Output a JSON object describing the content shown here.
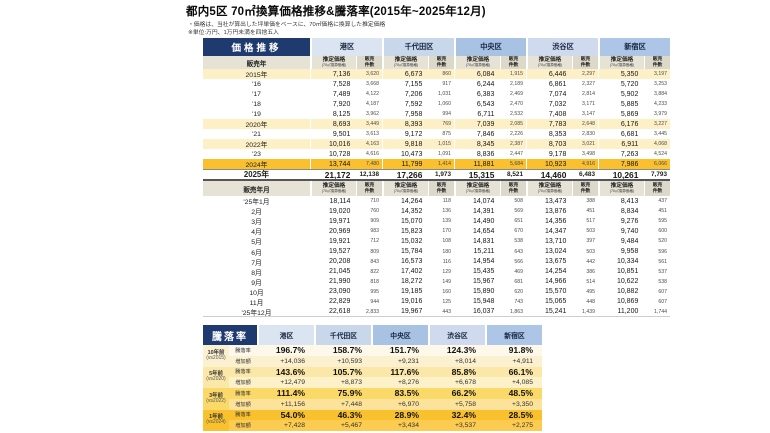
{
  "title": "都内5区 70㎡換算価格推移&騰落率(2015年~2025年12月)",
  "notes": {
    "note1": "・価格は、当社が算出した坪単価をベースに、70㎡価格に換算した推定価格",
    "note2": "※単位:万円、1万円未満を四捨五入"
  },
  "colors": {
    "header_navy": "#1e3a6e",
    "subheader_beige": "#e6e2d5",
    "highlight_yellow": "#fdf0c6",
    "highlight_gold": "#fbc02d"
  },
  "wards": [
    {
      "name": "港区",
      "color": "#dbe5f1"
    },
    {
      "name": "千代田区",
      "color": "#c9d7eb"
    },
    {
      "name": "中央区",
      "color": "#a8c2e4"
    },
    {
      "name": "渋谷区",
      "color": "#cfdaee"
    },
    {
      "name": "新宿区",
      "color": "#adc5e6"
    }
  ],
  "price_section": {
    "header": "価格推移",
    "year_label_header": "販売年",
    "month_label_header": "販売年月",
    "price_header": "推定価格",
    "price_sub": "(70㎡換算価格)",
    "count_header_1": "販売",
    "count_header_2": "件数",
    "yearly_rows": [
      {
        "label": "2015年",
        "cls": "y",
        "v": [
          [
            "7,136",
            "3,620"
          ],
          [
            "6,673",
            "860"
          ],
          [
            "6,084",
            "1,915"
          ],
          [
            "6,446",
            "2,297"
          ],
          [
            "5,350",
            "3,197"
          ]
        ]
      },
      {
        "label": "'16",
        "cls": "",
        "v": [
          [
            "7,528",
            "3,668"
          ],
          [
            "7,155",
            "917"
          ],
          [
            "6,244",
            "2,189"
          ],
          [
            "6,861",
            "2,327"
          ],
          [
            "5,720",
            "3,253"
          ]
        ]
      },
      {
        "label": "'17",
        "cls": "",
        "v": [
          [
            "7,489",
            "4,122"
          ],
          [
            "7,206",
            "1,031"
          ],
          [
            "6,383",
            "2,469"
          ],
          [
            "7,074",
            "2,814"
          ],
          [
            "5,902",
            "3,884"
          ]
        ]
      },
      {
        "label": "'18",
        "cls": "",
        "v": [
          [
            "7,920",
            "4,187"
          ],
          [
            "7,592",
            "1,060"
          ],
          [
            "6,543",
            "2,470"
          ],
          [
            "7,032",
            "3,171"
          ],
          [
            "5,885",
            "4,233"
          ]
        ]
      },
      {
        "label": "'19",
        "cls": "",
        "v": [
          [
            "8,125",
            "3,962"
          ],
          [
            "7,958",
            "994"
          ],
          [
            "6,711",
            "2,532"
          ],
          [
            "7,408",
            "3,147"
          ],
          [
            "5,869",
            "3,979"
          ]
        ]
      },
      {
        "label": "2020年",
        "cls": "y",
        "v": [
          [
            "8,693",
            "3,449"
          ],
          [
            "8,393",
            "769"
          ],
          [
            "7,039",
            "2,085"
          ],
          [
            "7,783",
            "2,648"
          ],
          [
            "6,176",
            "3,227"
          ]
        ]
      },
      {
        "label": "'21",
        "cls": "",
        "v": [
          [
            "9,501",
            "3,613"
          ],
          [
            "9,172",
            "875"
          ],
          [
            "7,846",
            "2,226"
          ],
          [
            "8,353",
            "2,830"
          ],
          [
            "6,681",
            "3,445"
          ]
        ]
      },
      {
        "label": "2022年",
        "cls": "y",
        "v": [
          [
            "10,016",
            "4,163"
          ],
          [
            "9,818",
            "1,015"
          ],
          [
            "8,345",
            "2,387"
          ],
          [
            "8,703",
            "3,021"
          ],
          [
            "6,911",
            "4,068"
          ]
        ]
      },
      {
        "label": "'23",
        "cls": "",
        "v": [
          [
            "10,728",
            "4,616"
          ],
          [
            "10,473",
            "1,091"
          ],
          [
            "8,836",
            "2,447"
          ],
          [
            "9,178",
            "3,498"
          ],
          [
            "7,263",
            "4,524"
          ]
        ]
      },
      {
        "label": "2024年",
        "cls": "g",
        "v": [
          [
            "13,744",
            "7,480"
          ],
          [
            "11,799",
            "1,414"
          ],
          [
            "11,881",
            "5,684"
          ],
          [
            "10,923",
            "4,916"
          ],
          [
            "7,986",
            "6,066"
          ]
        ]
      },
      {
        "label": "2025年",
        "cls": "b",
        "v": [
          [
            "21,172",
            "12,138"
          ],
          [
            "17,266",
            "1,973"
          ],
          [
            "15,315",
            "8,521"
          ],
          [
            "14,460",
            "6,483"
          ],
          [
            "10,261",
            "7,793"
          ]
        ]
      }
    ],
    "monthly_rows": [
      {
        "label": "'25年1月",
        "cls": "mo",
        "v": [
          [
            "18,114",
            "710"
          ],
          [
            "14,264",
            "118"
          ],
          [
            "14,074",
            "508"
          ],
          [
            "13,473",
            "388"
          ],
          [
            "8,413",
            "437"
          ]
        ]
      },
      {
        "label": "2月",
        "cls": "mo",
        "v": [
          [
            "19,020",
            "760"
          ],
          [
            "14,352",
            "136"
          ],
          [
            "14,391",
            "569"
          ],
          [
            "13,876",
            "451"
          ],
          [
            "8,834",
            "451"
          ]
        ]
      },
      {
        "label": "3月",
        "cls": "mo",
        "v": [
          [
            "19,971",
            "909"
          ],
          [
            "15,070",
            "139"
          ],
          [
            "14,490",
            "651"
          ],
          [
            "14,356",
            "517"
          ],
          [
            "9,276",
            "595"
          ]
        ]
      },
      {
        "label": "4月",
        "cls": "mo",
        "v": [
          [
            "20,969",
            "983"
          ],
          [
            "15,823",
            "170"
          ],
          [
            "14,654",
            "670"
          ],
          [
            "14,347",
            "503"
          ],
          [
            "9,740",
            "600"
          ]
        ]
      },
      {
        "label": "5月",
        "cls": "mo",
        "v": [
          [
            "19,921",
            "712"
          ],
          [
            "15,032",
            "108"
          ],
          [
            "14,831",
            "538"
          ],
          [
            "13,710",
            "397"
          ],
          [
            "9,484",
            "520"
          ]
        ]
      },
      {
        "label": "6月",
        "cls": "mo",
        "v": [
          [
            "19,527",
            "809"
          ],
          [
            "15,784",
            "180"
          ],
          [
            "15,211",
            "643"
          ],
          [
            "13,024",
            "503"
          ],
          [
            "9,958",
            "596"
          ]
        ]
      },
      {
        "label": "7月",
        "cls": "mo",
        "v": [
          [
            "20,208",
            "843"
          ],
          [
            "16,573",
            "116"
          ],
          [
            "14,954",
            "566"
          ],
          [
            "13,675",
            "442"
          ],
          [
            "10,334",
            "561"
          ]
        ]
      },
      {
        "label": "8月",
        "cls": "mo",
        "v": [
          [
            "21,045",
            "822"
          ],
          [
            "17,402",
            "129"
          ],
          [
            "15,435",
            "469"
          ],
          [
            "14,254",
            "386"
          ],
          [
            "10,851",
            "537"
          ]
        ]
      },
      {
        "label": "9月",
        "cls": "mo",
        "v": [
          [
            "21,990",
            "818"
          ],
          [
            "18,272",
            "149"
          ],
          [
            "15,967",
            "681"
          ],
          [
            "14,966",
            "514"
          ],
          [
            "10,622",
            "538"
          ]
        ]
      },
      {
        "label": "10月",
        "cls": "mo",
        "v": [
          [
            "23,090",
            "995"
          ],
          [
            "19,185",
            "160"
          ],
          [
            "15,890",
            "620"
          ],
          [
            "15,570",
            "495"
          ],
          [
            "10,882",
            "607"
          ]
        ]
      },
      {
        "label": "11月",
        "cls": "mo",
        "v": [
          [
            "22,829",
            "944"
          ],
          [
            "19,016",
            "125"
          ],
          [
            "15,948",
            "743"
          ],
          [
            "15,065",
            "448"
          ],
          [
            "10,869",
            "607"
          ]
        ]
      },
      {
        "label": "'25年12月",
        "cls": "end",
        "v": [
          [
            "22,618",
            "2,833"
          ],
          [
            "19,967",
            "443"
          ],
          [
            "16,037",
            "1,863"
          ],
          [
            "15,241",
            "1,439"
          ],
          [
            "11,200",
            "1,744"
          ]
        ]
      }
    ]
  },
  "change_section": {
    "header": "騰落率",
    "rate_row_label": "騰落率",
    "amount_row_label": "増加額",
    "groups": [
      {
        "period": "10年前",
        "vs": "(vs2015)",
        "label_bg": "#fbf0d0",
        "rate_bg": "#fdf8ea",
        "amount_bg": "#fbf0d0",
        "rates": [
          "196.7%",
          "158.7%",
          "151.7%",
          "124.3%",
          "91.8%"
        ],
        "amounts": [
          "+14,036",
          "+10,593",
          "+9,231",
          "+8,014",
          "+4,911"
        ]
      },
      {
        "period": "5年前",
        "vs": "(vs2020)",
        "label_bg": "#fbe8a8",
        "rate_bg": "#fbe8a8",
        "amount_bg": "#fcf1c9",
        "rates": [
          "143.6%",
          "105.7%",
          "117.6%",
          "85.8%",
          "66.1%"
        ],
        "amounts": [
          "+12,479",
          "+8,873",
          "+8,276",
          "+6,678",
          "+4,085"
        ]
      },
      {
        "period": "3年前",
        "vs": "(vs2022)",
        "label_bg": "#fbd968",
        "rate_bg": "#fbd968",
        "amount_bg": "#fce29a",
        "rates": [
          "111.4%",
          "75.9%",
          "83.5%",
          "66.2%",
          "48.5%"
        ],
        "amounts": [
          "+11,156",
          "+7,448",
          "+6,970",
          "+5,758",
          "+3,350"
        ]
      },
      {
        "period": "1年前",
        "vs": "(vs2024)",
        "label_bg": "#f9c12d",
        "rate_bg": "#f9c12d",
        "amount_bg": "#fbcb52",
        "rates": [
          "54.0%",
          "46.3%",
          "28.9%",
          "32.4%",
          "28.5%"
        ],
        "amounts": [
          "+7,428",
          "+5,467",
          "+3,434",
          "+3,537",
          "+2,275"
        ]
      }
    ]
  }
}
